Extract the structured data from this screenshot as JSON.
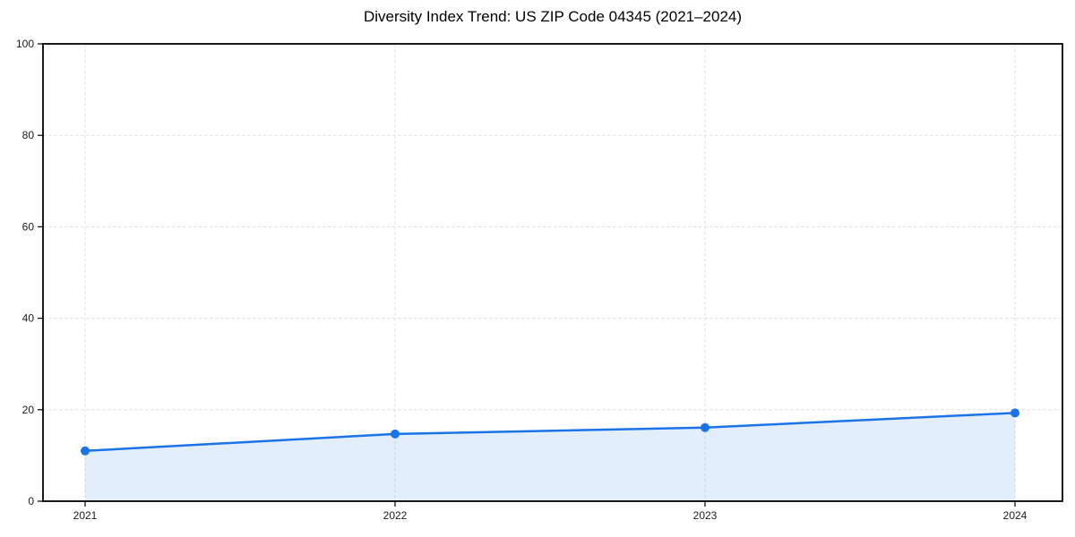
{
  "figure": {
    "background": "#ffffff"
  },
  "chart_data": {
    "type": "line",
    "title": "Diversity Index Trend: US ZIP Code 04345 (2021–2024)",
    "x": [
      "2021",
      "2022",
      "2023",
      "2024"
    ],
    "series": [
      {
        "name": "Diversity Index",
        "values": [
          11.0,
          14.7,
          16.1,
          19.3
        ]
      }
    ],
    "xlabel": "",
    "ylabel": "",
    "ylim": [
      0,
      100
    ],
    "yticks": [
      0,
      20,
      40,
      60,
      80,
      100
    ],
    "area_fill": true,
    "markers": true,
    "grid": "dashed-both-axes",
    "legend": "none",
    "style": {
      "line_color": "#1a73e8",
      "fill_color": "rgba(26,115,232,0.12)",
      "grid_color": "#dfdfdf",
      "axis_color": "#000000",
      "tick_label_color": "#1a1a1a",
      "title_color": "#000000"
    }
  }
}
